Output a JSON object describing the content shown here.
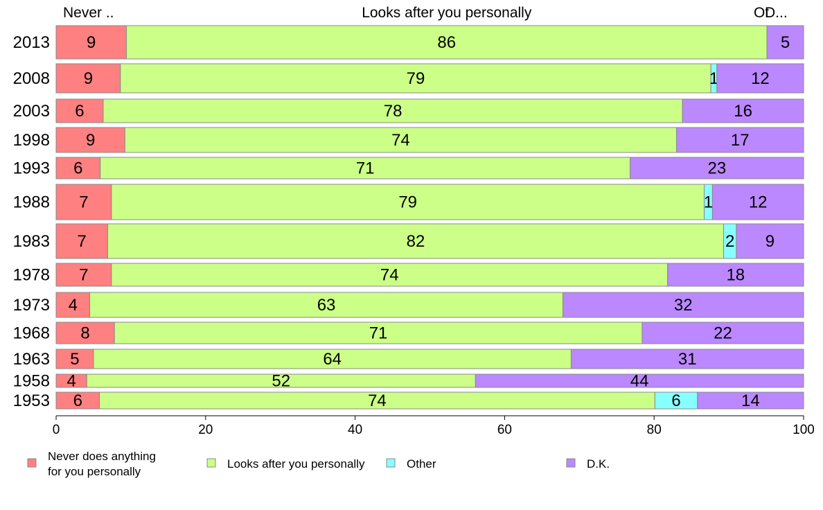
{
  "chart_data": {
    "type": "bar",
    "orientation": "horizontal",
    "stacked": true,
    "header_labels": [
      "Never ..",
      "Looks after you personally",
      "Ot",
      "D..."
    ],
    "categories": [
      "2013",
      "2008",
      "2003",
      "1998",
      "1993",
      "1988",
      "1983",
      "1978",
      "1973",
      "1968",
      "1963",
      "1958",
      "1953"
    ],
    "series": [
      {
        "name": "Never does anything for you personally",
        "legend_lines": [
          "Never does anything",
          "for you personally"
        ],
        "color": "#ff8080",
        "values": [
          9.4,
          8.6,
          6.3,
          9.2,
          5.9,
          7.4,
          6.9,
          7.4,
          4.5,
          7.8,
          5.0,
          4.1,
          5.8
        ],
        "labels": [
          "9",
          "9",
          "6",
          "9",
          "6",
          "7",
          "7",
          "7",
          "4",
          "8",
          "5",
          "4",
          "6"
        ]
      },
      {
        "name": "Looks after you personally",
        "legend_lines": [
          "Looks after you personally"
        ],
        "color": "#ccff88",
        "values": [
          85.7,
          79.0,
          77.5,
          73.8,
          70.9,
          79.3,
          82.4,
          74.4,
          63.3,
          70.6,
          63.9,
          52.0,
          74.3
        ],
        "labels": [
          "86",
          "79",
          "78",
          "74",
          "71",
          "79",
          "82",
          "74",
          "63",
          "71",
          "64",
          "52",
          "74"
        ]
      },
      {
        "name": "Other",
        "legend_lines": [
          "Other"
        ],
        "color": "#88ffff",
        "values": [
          0,
          0.8,
          0,
          0,
          0,
          1.1,
          1.7,
          0,
          0,
          0,
          0,
          0,
          5.7
        ],
        "labels": [
          "",
          "1",
          "",
          "",
          "",
          "1",
          "2",
          "",
          "",
          "",
          "",
          "",
          "6"
        ]
      },
      {
        "name": "D.K.",
        "legend_lines": [
          "D.K."
        ],
        "color": "#bb88ff",
        "values": [
          4.9,
          11.6,
          16.2,
          17.0,
          23.2,
          12.2,
          9.0,
          18.2,
          32.2,
          21.6,
          31.1,
          43.9,
          14.2
        ],
        "labels": [
          "5",
          "12",
          "16",
          "17",
          "23",
          "12",
          "9",
          "18",
          "32",
          "22",
          "31",
          "44",
          "14"
        ]
      }
    ],
    "xlim": [
      0,
      100
    ],
    "xticks": [
      "0",
      "20",
      "40",
      "60",
      "80",
      "100"
    ],
    "grid": false,
    "legend_position": "bottom"
  }
}
